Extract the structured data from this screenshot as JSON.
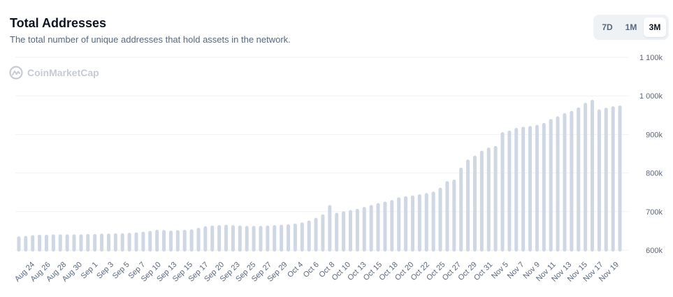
{
  "header": {
    "title": "Total Addresses",
    "subtitle": "The total number of unique addresses that hold assets in the network."
  },
  "range_toggle": {
    "options": [
      "7D",
      "1M",
      "3M"
    ],
    "selected": "3M"
  },
  "watermark": {
    "text": "CoinMarketCap",
    "icon": "coinmarketcap-logo-icon"
  },
  "colors": {
    "bar": "#cfd6e4",
    "grid": "#eff2f5",
    "text_secondary": "#58667e"
  },
  "chart_data": {
    "type": "bar",
    "ylim": [
      600000,
      1100000
    ],
    "yticks": [
      {
        "value": 600000,
        "label": "600k"
      },
      {
        "value": 700000,
        "label": "700k"
      },
      {
        "value": 800000,
        "label": "800k"
      },
      {
        "value": 900000,
        "label": "900k"
      },
      {
        "value": 1000000,
        "label": "1 000k"
      },
      {
        "value": 1100000,
        "label": "1 100k"
      }
    ],
    "grid": true,
    "xtick_labels": [
      "Aug 24",
      "Aug 26",
      "Aug 28",
      "Aug 30",
      "Sep 1",
      "Sep 3",
      "Sep 5",
      "Sep 7",
      "Sep 10",
      "Sep 13",
      "Sep 15",
      "Sep 17",
      "Sep 20",
      "Sep 23",
      "Sep 25",
      "Sep 27",
      "Sep 29",
      "Oct 4",
      "Oct 6",
      "Oct 8",
      "Oct 10",
      "Oct 13",
      "Oct 15",
      "Oct 18",
      "Oct 20",
      "Oct 22",
      "Oct 25",
      "Oct 27",
      "Oct 29",
      "Oct 31",
      "Nov 5",
      "Nov 7",
      "Nov 9",
      "Nov 11",
      "Nov 13",
      "Nov 15",
      "Nov 17",
      "Nov 19"
    ],
    "values": [
      636000,
      637000,
      639000,
      640000,
      640000,
      641000,
      641000,
      641000,
      641000,
      641000,
      642000,
      642000,
      643000,
      643000,
      644000,
      644000,
      645000,
      646000,
      648000,
      650000,
      653000,
      652000,
      651000,
      652000,
      653000,
      654000,
      658000,
      662000,
      664000,
      665000,
      666000,
      665000,
      664000,
      663000,
      663000,
      663000,
      664000,
      665000,
      666000,
      667000,
      669000,
      672000,
      677000,
      684000,
      693000,
      717000,
      697000,
      701000,
      704000,
      707000,
      712000,
      717000,
      722000,
      726000,
      730000,
      737000,
      740000,
      742000,
      745000,
      748000,
      752000,
      762000,
      779000,
      783000,
      814000,
      835000,
      845000,
      858000,
      866000,
      870000,
      906000,
      910000,
      917000,
      920000,
      922000,
      925000,
      930000,
      940000,
      947000,
      955000,
      961000,
      970000,
      982000,
      990000,
      965000,
      969000,
      973000,
      975000
    ]
  }
}
